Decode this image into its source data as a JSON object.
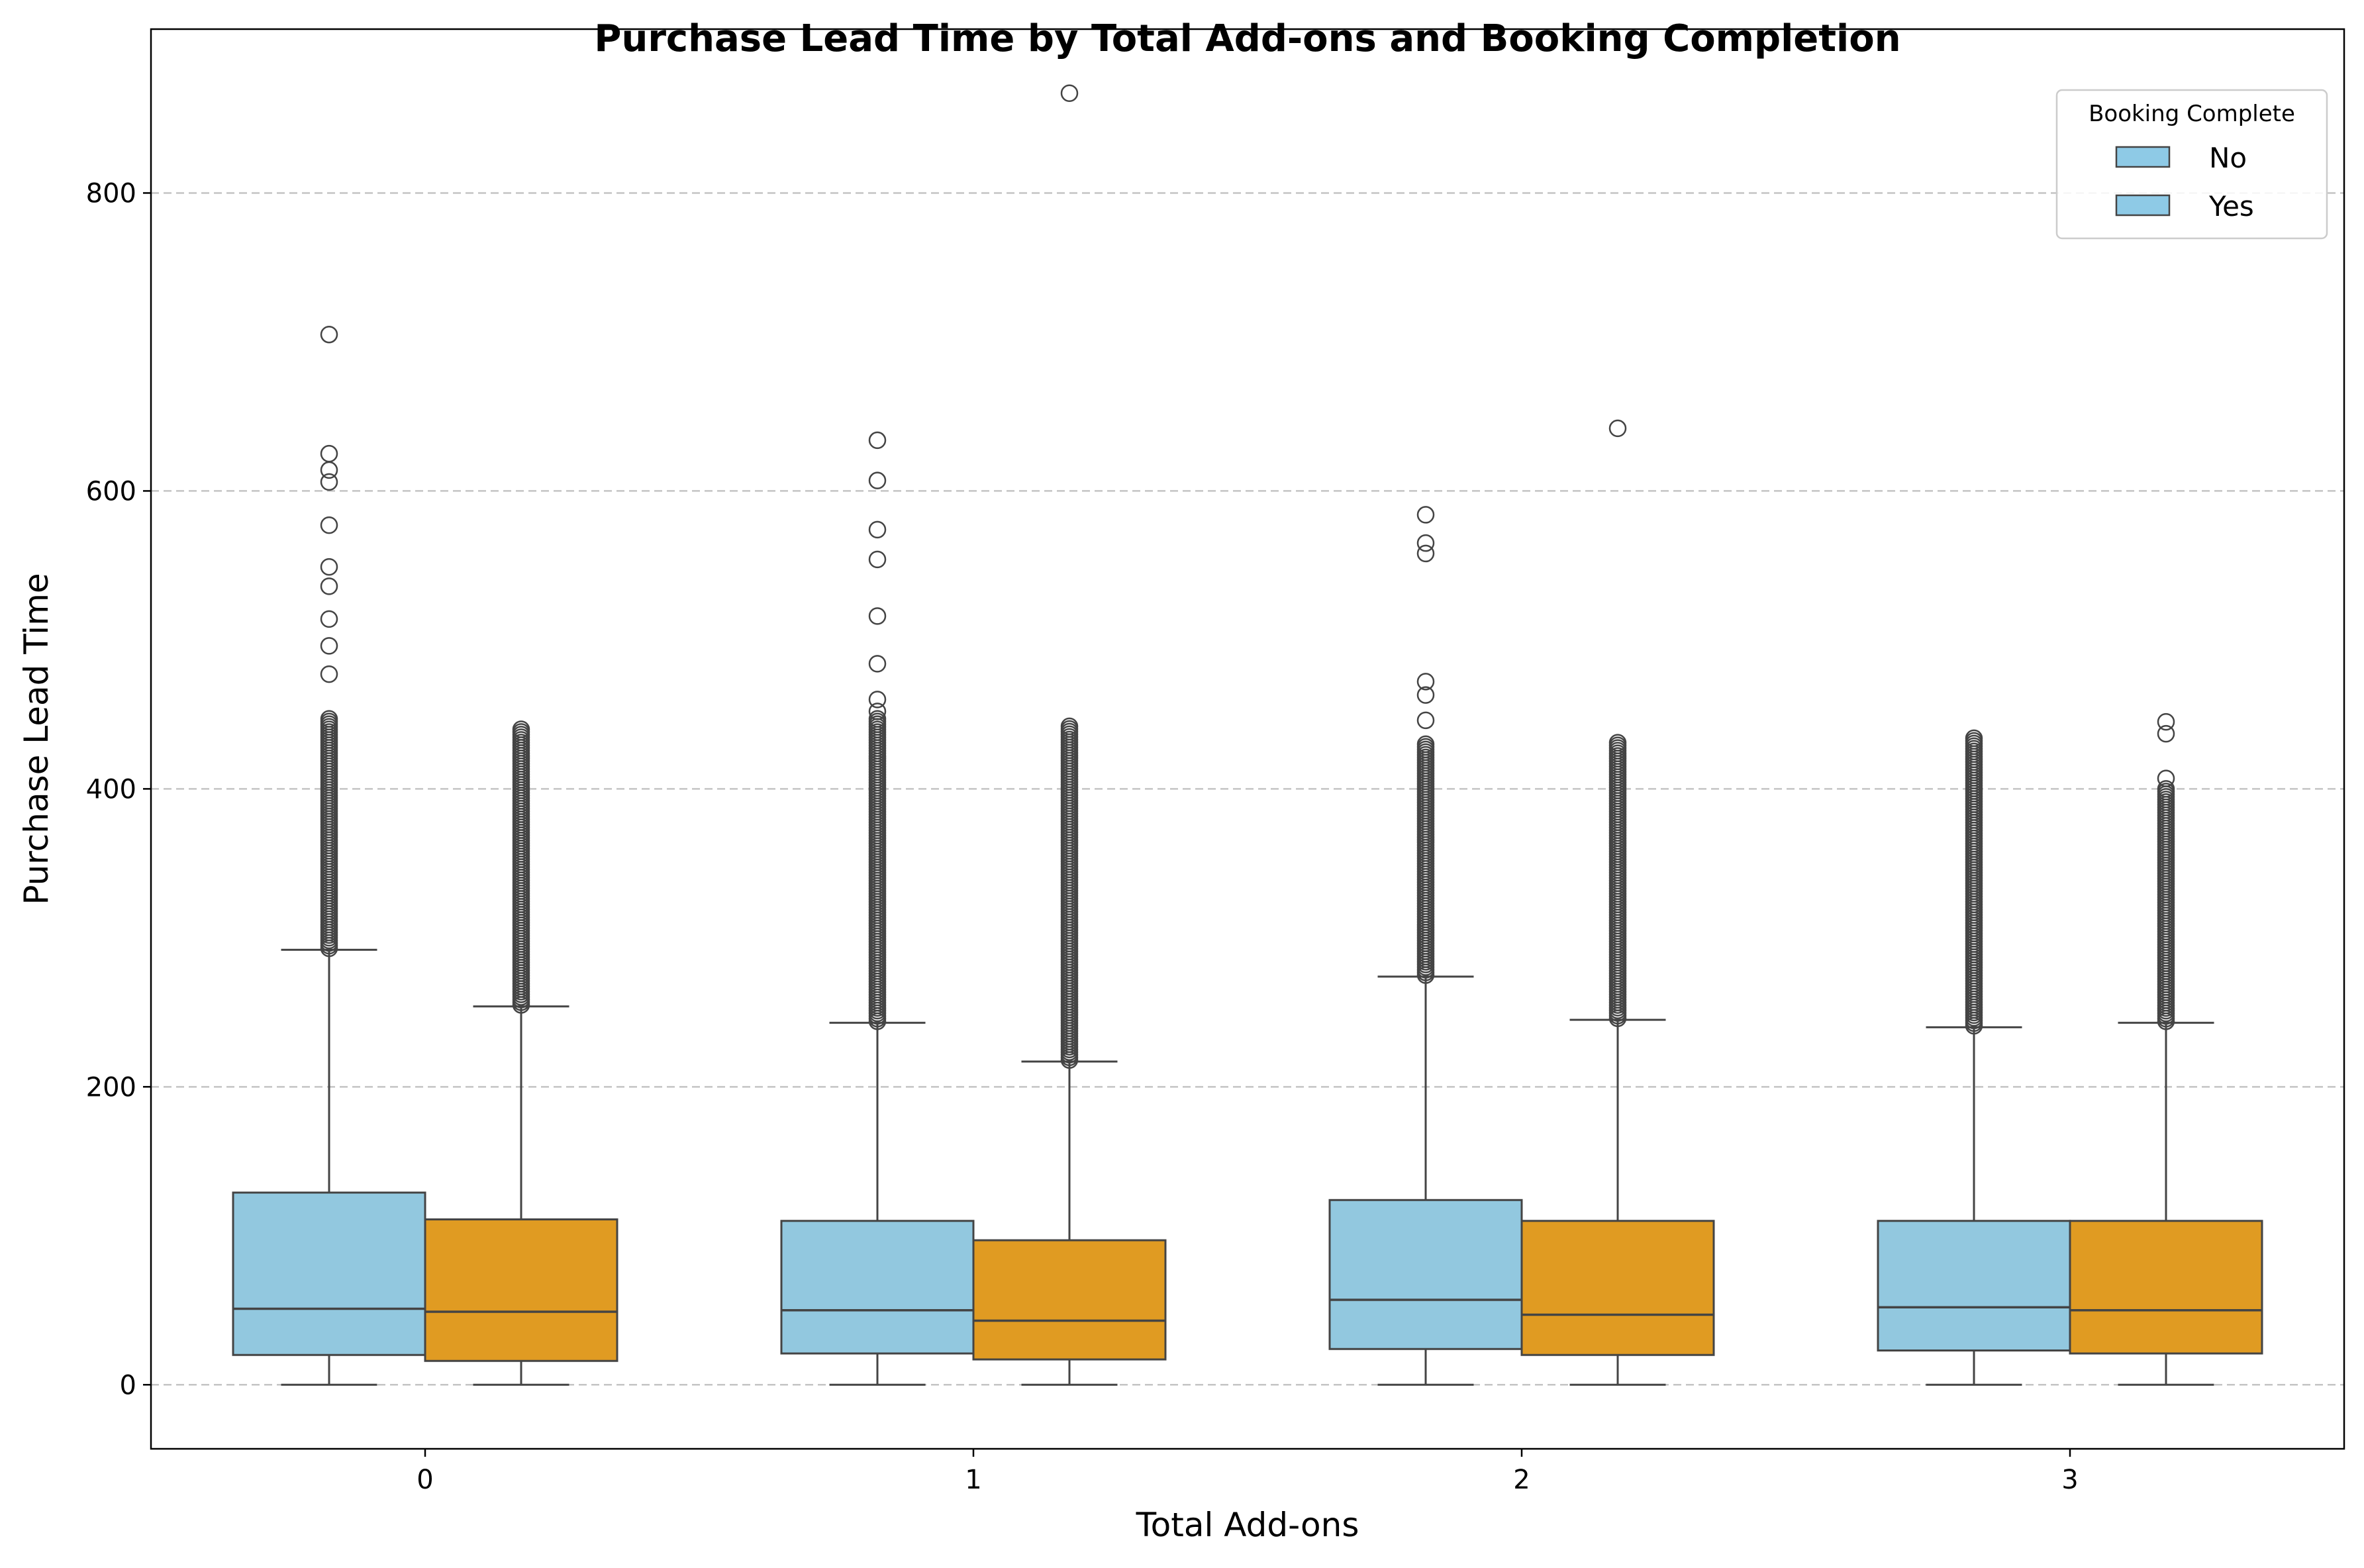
{
  "chart_data": {
    "type": "box",
    "title": "Purchase Lead Time by Total Add-ons and Booking Completion",
    "xlabel": "Total Add-ons",
    "ylabel": "Purchase Lead Time",
    "categories": [
      "0",
      "1",
      "2",
      "3"
    ],
    "y_ticks": [
      0,
      200,
      400,
      600,
      800
    ],
    "ylim": [
      -43,
      910
    ],
    "grid": "horizontal dashed",
    "legend": {
      "title": "Booking Complete",
      "position": "top-right",
      "entries": [
        {
          "label": "No",
          "color": "#8ecae6"
        },
        {
          "label": "Yes",
          "color": "#8ecae6"
        }
      ]
    },
    "series": [
      {
        "name": "No",
        "color": "#92c8df",
        "boxes": [
          {
            "category": "0",
            "whisker_low": 0,
            "q1": 20,
            "median": 51,
            "q3": 129,
            "whisker_high": 292,
            "outlier_range": [
              293,
              447
            ],
            "outliers": [
              477,
              496,
              514,
              536,
              549,
              577,
              606,
              614,
              625,
              705
            ]
          },
          {
            "category": "1",
            "whisker_low": 0,
            "q1": 21,
            "median": 50,
            "q3": 110,
            "whisker_high": 243,
            "outlier_range": [
              244,
              447
            ],
            "outliers": [
              452,
              460,
              484,
              516,
              554,
              574,
              607,
              634
            ]
          },
          {
            "category": "2",
            "whisker_low": 0,
            "q1": 24,
            "median": 57,
            "q3": 124,
            "whisker_high": 274,
            "outlier_range": [
              275,
              430
            ],
            "outliers": [
              446,
              463,
              472,
              558,
              565,
              584
            ]
          },
          {
            "category": "3",
            "whisker_low": 0,
            "q1": 23,
            "median": 52,
            "q3": 110,
            "whisker_high": 240,
            "outlier_range": [
              241,
              434
            ],
            "outliers": []
          }
        ]
      },
      {
        "name": "Yes",
        "color": "#e09b22",
        "boxes": [
          {
            "category": "0",
            "whisker_low": 0,
            "q1": 16,
            "median": 49,
            "q3": 111,
            "whisker_high": 254,
            "outlier_range": [
              255,
              440
            ],
            "outliers": []
          },
          {
            "category": "1",
            "whisker_low": 0,
            "q1": 17,
            "median": 43,
            "q3": 97,
            "whisker_high": 217,
            "outlier_range": [
              218,
              442
            ],
            "outliers": [
              867
            ]
          },
          {
            "category": "2",
            "whisker_low": 0,
            "q1": 20,
            "median": 47,
            "q3": 110,
            "whisker_high": 245,
            "outlier_range": [
              246,
              431
            ],
            "outliers": [
              642
            ]
          },
          {
            "category": "3",
            "whisker_low": 0,
            "q1": 21,
            "median": 50,
            "q3": 110,
            "whisker_high": 243,
            "outlier_range": [
              244,
              400
            ],
            "outliers": [
              407,
              437,
              445
            ]
          }
        ]
      }
    ]
  }
}
